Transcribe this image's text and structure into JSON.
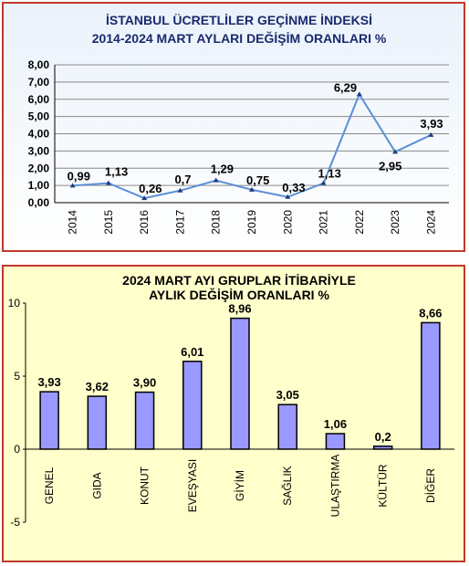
{
  "chart_data": [
    {
      "type": "line",
      "title_lines": [
        "İSTANBUL ÜCRETLİLER GEÇİNME İNDEKSİ",
        "2014-2024 MART AYLARI  DEĞİŞİM  ORANLARI  %"
      ],
      "categories": [
        "2014",
        "2015",
        "2016",
        "2017",
        "2018",
        "2019",
        "2020",
        "2021",
        "2022",
        "2023",
        "2024"
      ],
      "values": [
        0.99,
        1.13,
        0.26,
        0.7,
        1.29,
        0.75,
        0.33,
        1.13,
        6.29,
        2.95,
        3.93
      ],
      "data_labels": [
        "0,99",
        "1,13",
        "0,26",
        "0,7",
        "1,29",
        "0,75",
        "0,33",
        "1,13",
        "6,29",
        "2,95",
        "3,93"
      ],
      "yticks": [
        "0,00",
        "1,00",
        "2,00",
        "3,00",
        "4,00",
        "5,00",
        "6,00",
        "7,00",
        "8,00"
      ],
      "ylim": [
        0,
        8
      ],
      "grid": true,
      "line_color": "#5b8fd6"
    },
    {
      "type": "bar",
      "title_lines": [
        "2024 MART AYI  GRUPLAR İTİBARİYLE",
        "AYLIK DEĞİŞİM  ORANLARI  %"
      ],
      "categories": [
        "GENEL",
        "GIDA",
        "KONUT",
        "EVEŞYASI",
        "GİYİM",
        "SAĞLIK",
        "ULAŞTIRMA",
        "KÜLTÜR",
        "DİĞER"
      ],
      "values": [
        3.93,
        3.62,
        3.9,
        6.01,
        8.96,
        3.05,
        1.06,
        0.2,
        8.66
      ],
      "data_labels": [
        "3,93",
        "3,62",
        "3,90",
        "6,01",
        "8,96",
        "3,05",
        "1,06",
        "0,2",
        "8,66"
      ],
      "yticks": [
        "-5",
        "0",
        "5",
        "10"
      ],
      "ylim": [
        -5,
        10
      ],
      "grid": false,
      "bar_color": "#9999ff"
    }
  ]
}
